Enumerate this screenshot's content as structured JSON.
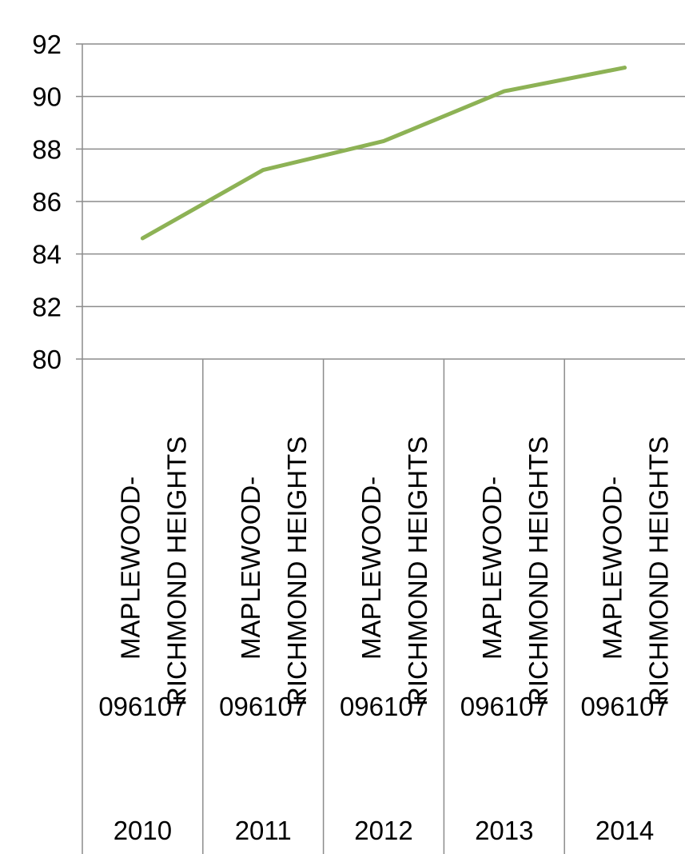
{
  "chart_data": {
    "type": "line",
    "title": "",
    "xlabel": "",
    "ylabel": "",
    "ylim": [
      80,
      92
    ],
    "yticks": [
      80,
      82,
      84,
      86,
      88,
      90,
      92
    ],
    "grid": true,
    "legend": "none",
    "categories": [
      {
        "name_line1": "MAPLEWOOD-",
        "name_line2": "RICHMOND HEIGHTS",
        "code": "096107",
        "year": "2010"
      },
      {
        "name_line1": "MAPLEWOOD-",
        "name_line2": "RICHMOND HEIGHTS",
        "code": "096107",
        "year": "2011"
      },
      {
        "name_line1": "MAPLEWOOD-",
        "name_line2": "RICHMOND HEIGHTS",
        "code": "096107",
        "year": "2012"
      },
      {
        "name_line1": "MAPLEWOOD-",
        "name_line2": "RICHMOND HEIGHTS",
        "code": "096107",
        "year": "2013"
      },
      {
        "name_line1": "MAPLEWOOD-",
        "name_line2": "RICHMOND HEIGHTS",
        "code": "096107",
        "year": "2014"
      }
    ],
    "series": [
      {
        "values": [
          84.6,
          87.2,
          88.3,
          90.2,
          91.1
        ],
        "color": "#8db255"
      }
    ],
    "colors": {
      "grid": "#8c8c8c",
      "line": "#8db255"
    }
  }
}
